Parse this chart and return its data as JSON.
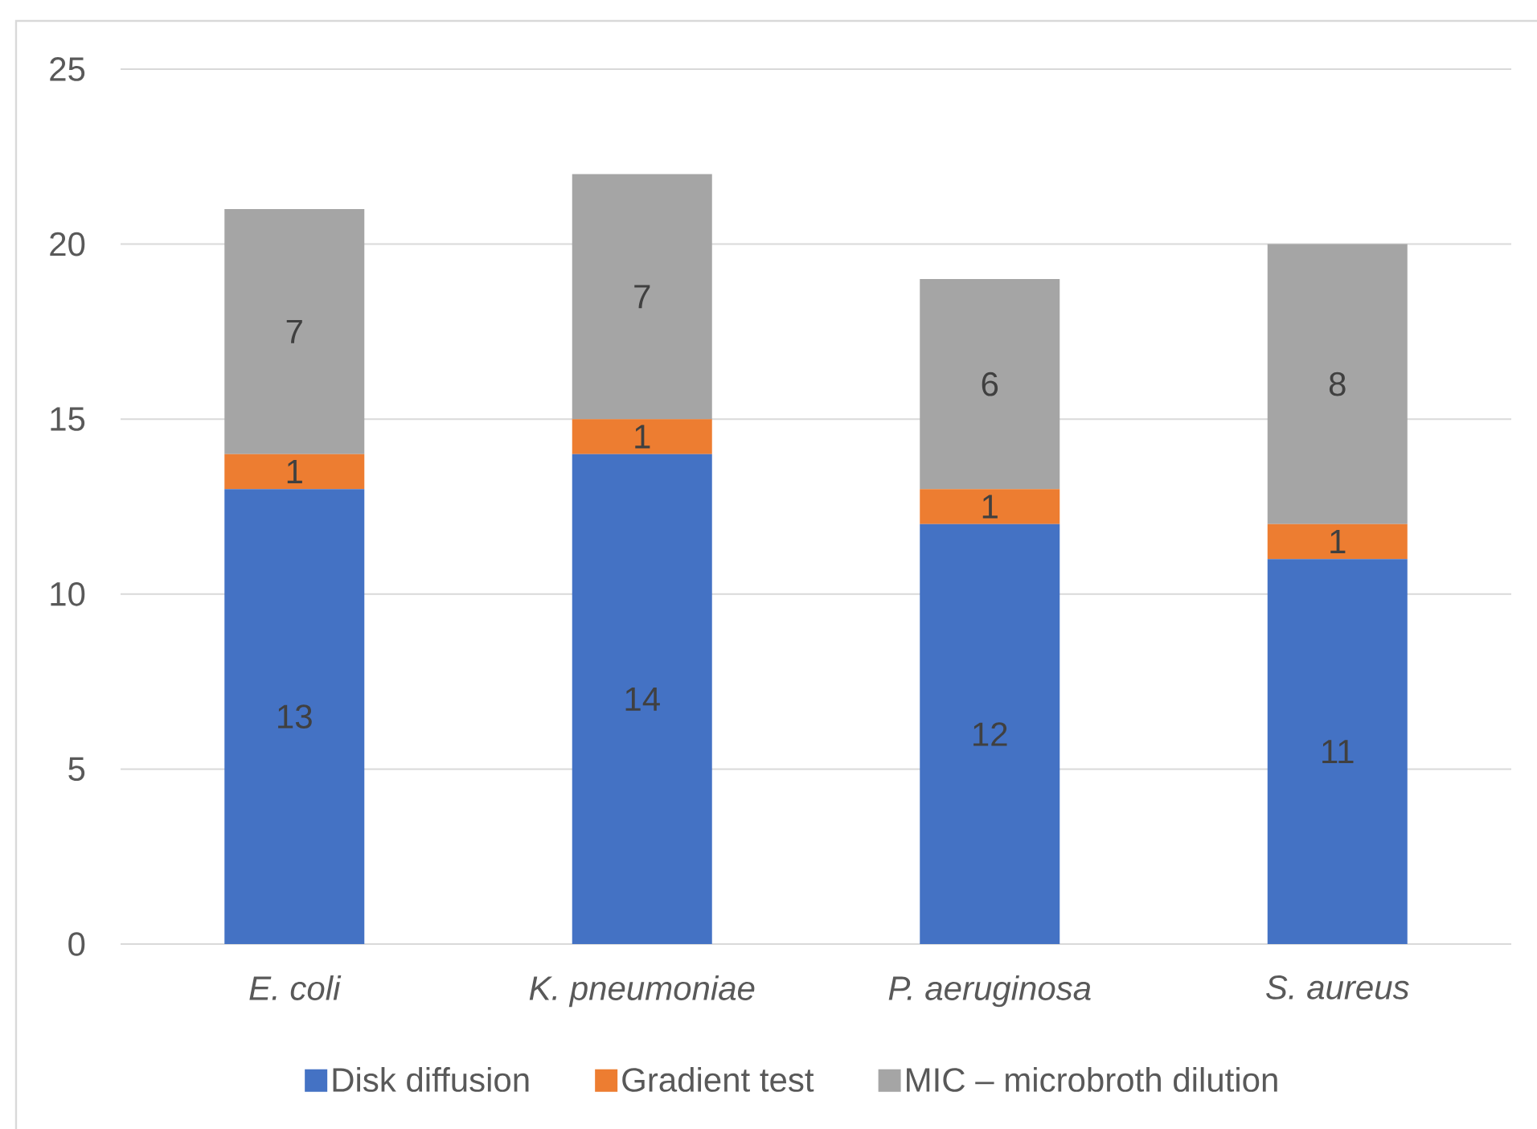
{
  "chart_data": {
    "type": "bar",
    "stacked": true,
    "categories": [
      "E. coli",
      "K. pneumoniae",
      "P. aeruginosa",
      "S. aureus"
    ],
    "series": [
      {
        "name": "Disk diffusion",
        "color": "#4472c4",
        "values": [
          13,
          14,
          12,
          11
        ]
      },
      {
        "name": "Gradient test",
        "color": "#ed7d31",
        "values": [
          1,
          1,
          1,
          1
        ]
      },
      {
        "name": "MIC – microbroth dilution",
        "color": "#a5a5a5",
        "values": [
          7,
          7,
          6,
          8
        ]
      }
    ],
    "ylim": [
      0,
      25
    ],
    "yticks": [
      0,
      5,
      10,
      15,
      20,
      25
    ],
    "grid": "y",
    "legend": "bottom",
    "data_labels": true
  }
}
